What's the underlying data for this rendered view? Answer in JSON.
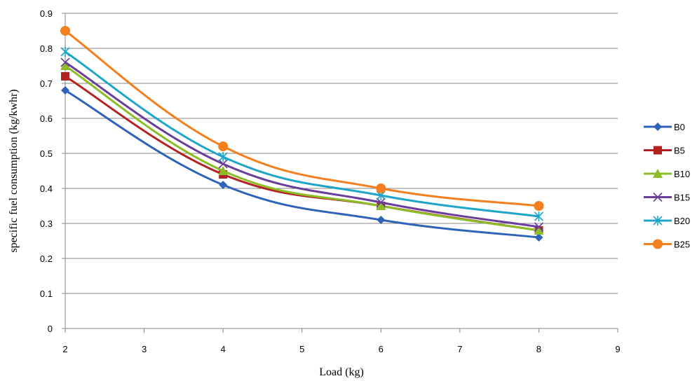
{
  "chart_data": {
    "type": "line",
    "title": "",
    "xlabel": "Load (kg)",
    "ylabel": "specific fuel consumption (kg/kwhr)",
    "xlim": [
      2,
      9
    ],
    "ylim": [
      0,
      0.9
    ],
    "xticks": [
      "2",
      "3",
      "4",
      "5",
      "6",
      "7",
      "8",
      "9"
    ],
    "yticks": [
      "0",
      "0.1",
      "0.2",
      "0.3",
      "0.4",
      "0.5",
      "0.6",
      "0.7",
      "0.8",
      "0.9"
    ],
    "grid": "horizontal",
    "legend_position": "right",
    "x": [
      2,
      4,
      6,
      8
    ],
    "series": [
      {
        "name": "B0",
        "color": "#2e63b8",
        "marker": "diamond",
        "values": [
          0.68,
          0.41,
          0.31,
          0.26
        ]
      },
      {
        "name": "B5",
        "color": "#b22222",
        "marker": "square",
        "values": [
          0.72,
          0.44,
          0.35,
          0.28
        ]
      },
      {
        "name": "B10",
        "color": "#8cbd26",
        "marker": "triangle",
        "values": [
          0.75,
          0.45,
          0.35,
          0.28
        ]
      },
      {
        "name": "B15",
        "color": "#6a3d9a",
        "marker": "x",
        "values": [
          0.76,
          0.47,
          0.36,
          0.29
        ]
      },
      {
        "name": "B20",
        "color": "#1fa5c9",
        "marker": "star",
        "values": [
          0.79,
          0.49,
          0.38,
          0.32
        ]
      },
      {
        "name": "B25",
        "color": "#f47f1f",
        "marker": "circle",
        "values": [
          0.85,
          0.52,
          0.4,
          0.35
        ]
      }
    ]
  }
}
